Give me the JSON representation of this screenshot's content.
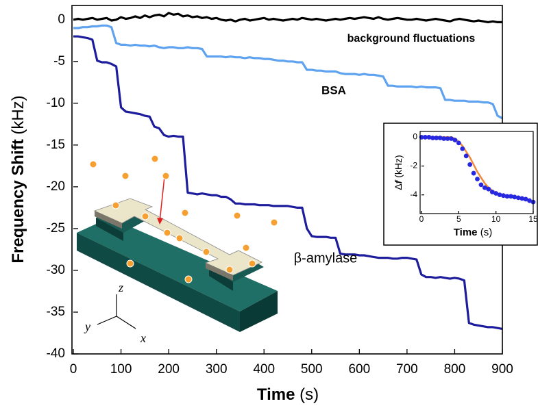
{
  "chart_data": [
    {
      "type": "line",
      "x_title": "Time",
      "x_unit": "(s)",
      "y_title": "Frequency Shift",
      "y_unit": "(kHz)",
      "xlim": [
        0,
        900
      ],
      "xticks": [
        0,
        100,
        200,
        300,
        400,
        500,
        600,
        700,
        800,
        900
      ],
      "ylim": [
        -40,
        1.7
      ],
      "yticks": [
        0,
        -5,
        -10,
        -15,
        -20,
        -25,
        -30,
        -35,
        -40
      ],
      "x": [
        0,
        10,
        20,
        30,
        40,
        50,
        60,
        70,
        80,
        90,
        100,
        110,
        120,
        130,
        140,
        150,
        160,
        170,
        180,
        190,
        200,
        210,
        220,
        230,
        240,
        250,
        260,
        270,
        280,
        290,
        300,
        310,
        320,
        330,
        340,
        350,
        360,
        370,
        380,
        390,
        400,
        410,
        420,
        430,
        440,
        450,
        460,
        470,
        480,
        490,
        500,
        510,
        520,
        530,
        540,
        550,
        560,
        570,
        580,
        590,
        600,
        610,
        620,
        630,
        640,
        650,
        660,
        670,
        680,
        690,
        700,
        710,
        720,
        730,
        740,
        750,
        760,
        770,
        780,
        790,
        800,
        810,
        820,
        830,
        840,
        850,
        860,
        870,
        880,
        890,
        900
      ],
      "series": [
        {
          "name": "background fluctuations",
          "color": "#000000",
          "values": [
            0,
            0.1,
            0,
            0.1,
            0.2,
            0,
            0.1,
            0.2,
            -0.1,
            0,
            0.3,
            0.1,
            0.2,
            0.4,
            0.2,
            0.5,
            0.3,
            0.5,
            0.6,
            0.4,
            0.8,
            0.6,
            0.7,
            0.4,
            0.5,
            0.3,
            0.4,
            0.2,
            0.3,
            0.1,
            0.2,
            0,
            -0.1,
            0,
            -0.2,
            0,
            0.1,
            -0.1,
            0,
            0.1,
            0.2,
            0,
            0.1,
            0,
            -0.1,
            0,
            0.1,
            0,
            0.2,
            0.1,
            0,
            0.1,
            0,
            -0.1,
            0,
            0.1,
            0,
            0.1,
            0.2,
            0.1,
            0.2,
            0.3,
            0.2,
            0.1,
            0.3,
            0.1,
            0,
            0.1,
            0.2,
            0.1,
            0,
            0,
            0.1,
            0,
            -0.1,
            0,
            0.1,
            0,
            -0.1,
            -0.2,
            0,
            0.1,
            0,
            -0.1,
            -0.2,
            -0.1,
            -0.2,
            -0.3,
            -0.2,
            -0.3,
            -0.3
          ]
        },
        {
          "name": "BSA",
          "color": "#5ea2f0",
          "values": [
            -1,
            -1,
            -0.9,
            -0.9,
            -0.8,
            -0.8,
            -0.7,
            -0.7,
            -0.9,
            -2.8,
            -3,
            -3,
            -3.1,
            -3,
            -3.1,
            -3.1,
            -3.2,
            -3.1,
            -3.3,
            -3.4,
            -3.3,
            -3.3,
            -3.4,
            -3.4,
            -3.3,
            -3.4,
            -3.4,
            -3.5,
            -4.4,
            -4.4,
            -4.4,
            -4.4,
            -4.5,
            -4.4,
            -4.5,
            -4.5,
            -4.6,
            -4.5,
            -4.6,
            -4.6,
            -4.7,
            -4.7,
            -4.8,
            -4.9,
            -4.9,
            -5,
            -5,
            -5.1,
            -5.1,
            -6,
            -6,
            -6.1,
            -6.1,
            -6.2,
            -6.2,
            -6.2,
            -6.4,
            -6.5,
            -6.5,
            -6.5,
            -6.6,
            -6.5,
            -6.6,
            -6.6,
            -6.7,
            -6.8,
            -7.9,
            -7.9,
            -8,
            -8,
            -8,
            -8,
            -8.1,
            -8,
            -8.1,
            -8.1,
            -8.1,
            -8.2,
            -9.6,
            -9.6,
            -9.7,
            -9.7,
            -9.7,
            -9.8,
            -9.8,
            -9.8,
            -9.9,
            -9.9,
            -10.1,
            -11.5,
            -11.8
          ]
        },
        {
          "name": "β-amylase",
          "color": "#1c1c9c",
          "values": [
            -2,
            -2,
            -2.1,
            -2.2,
            -2.4,
            -4.9,
            -5.1,
            -5.1,
            -5.3,
            -5.6,
            -10.5,
            -11,
            -11.1,
            -11.2,
            -11.3,
            -11.5,
            -11.6,
            -12.8,
            -13,
            -13.8,
            -14,
            -13.9,
            -14,
            -14,
            -20.7,
            -20.8,
            -20.9,
            -20.8,
            -20.9,
            -21,
            -21,
            -21.2,
            -21.2,
            -21.5,
            -22,
            -22,
            -22.1,
            -22.1,
            -22.1,
            -22.2,
            -22.2,
            -22.2,
            -22.3,
            -22.3,
            -22.3,
            -22.3,
            -22.4,
            -22.5,
            -22.5,
            -25,
            -25.9,
            -26,
            -26,
            -26,
            -26.1,
            -26.1,
            -28,
            -28.1,
            -28.1,
            -28.1,
            -28.2,
            -28.2,
            -28.3,
            -28.4,
            -28.5,
            -28.5,
            -28.5,
            -28.6,
            -28.6,
            -28.5,
            -28.5,
            -28.6,
            -28.7,
            -30.5,
            -30.8,
            -30.8,
            -30.9,
            -30.8,
            -30.9,
            -31,
            -30.9,
            -31,
            -31.2,
            -36.3,
            -36.5,
            -36.6,
            -36.7,
            -36.8,
            -36.8,
            -36.9,
            -37
          ]
        }
      ]
    },
    {
      "type": "line",
      "x_title": "Time",
      "x_unit": "(s)",
      "y_symbol": "Δ",
      "y_var": "f",
      "y_unit": "(kHz)",
      "xlim": [
        0,
        15
      ],
      "xticks": [
        0,
        5,
        10,
        15
      ],
      "ylim": [
        -5.3,
        0.4
      ],
      "yticks": [
        0,
        -2,
        -4
      ],
      "x": [
        0,
        0.5,
        1,
        1.5,
        2,
        2.5,
        3,
        3.5,
        4,
        4.5,
        5,
        5.5,
        6,
        6.5,
        7,
        7.5,
        8,
        8.5,
        9,
        9.5,
        10,
        10.5,
        11,
        11.5,
        12,
        12.5,
        13,
        13.5,
        14,
        14.5,
        15
      ],
      "series": [
        {
          "color": "#f08a3a",
          "mode": "line",
          "values": [
            0,
            0,
            0,
            0,
            0,
            0,
            0,
            0,
            0,
            -0.1,
            -0.3,
            -0.6,
            -1,
            -1.4,
            -1.9,
            -2.4,
            -2.8,
            -3.2,
            -3.5,
            -3.7,
            -3.85,
            -3.95,
            -4.02,
            -4.08,
            -4.12,
            -4.16,
            -4.2,
            -4.24,
            -4.3,
            -4.38,
            -4.45
          ]
        },
        {
          "color": "#2828e0",
          "mode": "markers",
          "values": [
            0,
            0,
            0,
            -0.05,
            -0.05,
            -0.05,
            -0.1,
            -0.1,
            -0.1,
            -0.2,
            -0.4,
            -0.8,
            -1.3,
            -1.9,
            -2.5,
            -2.9,
            -3.3,
            -3.5,
            -3.6,
            -3.8,
            -3.9,
            -4,
            -4.05,
            -4.1,
            -4.1,
            -4.15,
            -4.2,
            -4.25,
            -4.3,
            -4.4,
            -4.5
          ]
        }
      ]
    }
  ],
  "illustration": {
    "axes": [
      "x",
      "y",
      "z"
    ]
  }
}
